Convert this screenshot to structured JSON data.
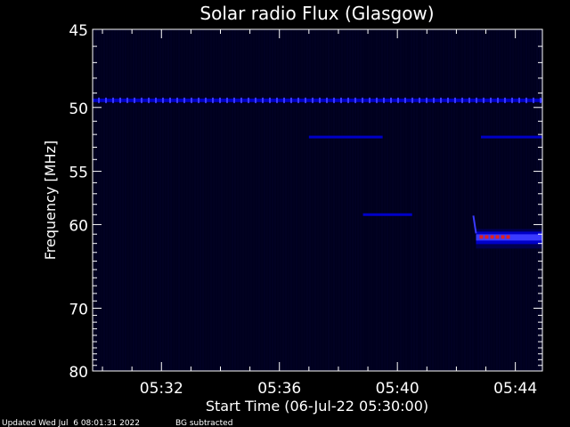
{
  "chart_data": {
    "type": "heatmap",
    "title": "Solar radio Flux (Glasgow)",
    "xlabel": "Start Time (06-Jul-22 05:30:00)",
    "ylabel": "Frequency [MHz]",
    "x_unit": "time (HH:MM)",
    "xlim": [
      "05:29:40",
      "05:44:55"
    ],
    "ylim": [
      45,
      80
    ],
    "y_axis_scale": "reciprocal (higher frequency at bottom)",
    "x_ticks": [
      "05:32",
      "05:36",
      "05:40",
      "05:44"
    ],
    "y_ticks": [
      45,
      50,
      55,
      60,
      70,
      80
    ],
    "grid": false,
    "colormap": [
      "#00001e",
      "#0000c8",
      "#3a3aff",
      "#e02020"
    ],
    "features": [
      {
        "label": "constant interference band",
        "freq_mhz": 49.5,
        "start": "05:29:40",
        "end": "05:44:55",
        "intensity": "high"
      },
      {
        "label": "interference segment",
        "freq_mhz": 52.2,
        "start": "05:37:00",
        "end": "05:39:30",
        "intensity": "medium"
      },
      {
        "label": "interference segment",
        "freq_mhz": 52.2,
        "start": "05:42:50",
        "end": "05:44:55",
        "intensity": "medium"
      },
      {
        "label": "drifting feature",
        "freq_mhz": 59.0,
        "start": "05:38:50",
        "end": "05:40:30",
        "intensity": "medium"
      },
      {
        "label": "bright band",
        "freq_mhz": 61.3,
        "start": "05:42:40",
        "end": "05:44:55",
        "intensity": "strong"
      }
    ]
  },
  "footer": {
    "updated": "Updated Wed Jul  6 08:01:31 2022",
    "note": "BG subtracted"
  }
}
